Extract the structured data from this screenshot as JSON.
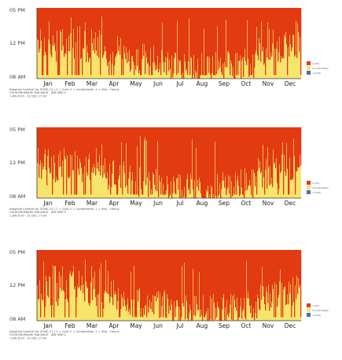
{
  "chart_data": [
    {
      "type": "heatmap",
      "x_categories": [
        "Jan",
        "Feb",
        "Mar",
        "Apr",
        "May",
        "Jun",
        "Jul",
        "Aug",
        "Sep",
        "Oct",
        "Nov",
        "Dec"
      ],
      "y_ticks": [
        "05 PM",
        "12 PM",
        "08 AM"
      ],
      "y_range": [
        "08 AM",
        "05 PM"
      ],
      "caption": [
        "Adaptive Comfort for ZONE_11 (-1 = Cold, 0 = Comfortable, 1 = Hot) - Hourly",
        "CHOKSIRUMAHIE MALANUS . IDN IWEC2",
        "1 JAN 8:00 - 31 DEC 17:00"
      ],
      "legend": [
        {
          "label": "1 (Hot)",
          "color": "#e23a11"
        },
        {
          "label": "0 (Comfortable)",
          "color": "#f7e46b"
        },
        {
          "label": "-1 (Cold)",
          "color": "#4a6fb8"
        }
      ],
      "colors": {
        "hot": "#e23a11",
        "comfortable": "#f7e46b",
        "cold": "#4a6fb8"
      },
      "monthly_hot_fraction": [
        0.55,
        0.5,
        0.55,
        0.62,
        0.72,
        0.75,
        0.85,
        0.85,
        0.82,
        0.78,
        0.62,
        0.55
      ]
    },
    {
      "type": "heatmap",
      "x_categories": [
        "Jan",
        "Feb",
        "Mar",
        "Apr",
        "May",
        "Jun",
        "Jul",
        "Aug",
        "Sep",
        "Oct",
        "Nov",
        "Dec"
      ],
      "y_ticks": [
        "05 PM",
        "12 PM",
        "08 AM"
      ],
      "y_range": [
        "08 AM",
        "05 PM"
      ],
      "caption": [
        "Adaptive Comfort for ZONE_14 (-1 = Cold, 0 = Comfortable, 1 = Hot) - Hourly",
        "CHOKSIRUMAHIE MALANUS . IDN IWEC2",
        "1 JAN 8:00 - 31 DEC 17:00"
      ],
      "legend": [
        {
          "label": "1 (Hot)",
          "color": "#e23a11"
        },
        {
          "label": "0 (Comfortable)",
          "color": "#f7e46b"
        },
        {
          "label": "-1 (Cold)",
          "color": "#4a6fb8"
        }
      ],
      "colors": {
        "hot": "#e23a11",
        "comfortable": "#f7e46b",
        "cold": "#4a6fb8"
      },
      "monthly_hot_fraction": [
        0.6,
        0.55,
        0.6,
        0.66,
        0.76,
        0.8,
        0.88,
        0.88,
        0.85,
        0.8,
        0.66,
        0.6
      ]
    },
    {
      "type": "heatmap",
      "x_categories": [
        "Jan",
        "Feb",
        "Mar",
        "Apr",
        "May",
        "Jun",
        "Jul",
        "Aug",
        "Sep",
        "Oct",
        "Nov",
        "Dec"
      ],
      "y_ticks": [
        "05 PM",
        "12 PM",
        "08 AM"
      ],
      "y_range": [
        "08 AM",
        "05 PM"
      ],
      "caption": [
        "Adaptive Comfort for ZONE_17 (-1 = Cold, 0 = Comfortable, 1 = Hot) - Hourly",
        "CHOKSIRUMAHIE MALANUS . IDN IWEC2",
        "1 JAN 8:00 - 31 DEC 17:00"
      ],
      "legend": [
        {
          "label": "1 (Hot)",
          "color": "#e23a11"
        },
        {
          "label": "0 (Comfortable)",
          "color": "#f7e46b"
        },
        {
          "label": "-1 (Cold)",
          "color": "#4a6fb8"
        }
      ],
      "colors": {
        "hot": "#e23a11",
        "comfortable": "#f7e46b",
        "cold": "#4a6fb8"
      },
      "monthly_hot_fraction": [
        0.58,
        0.52,
        0.58,
        0.64,
        0.74,
        0.78,
        0.86,
        0.86,
        0.83,
        0.79,
        0.64,
        0.58
      ]
    }
  ]
}
